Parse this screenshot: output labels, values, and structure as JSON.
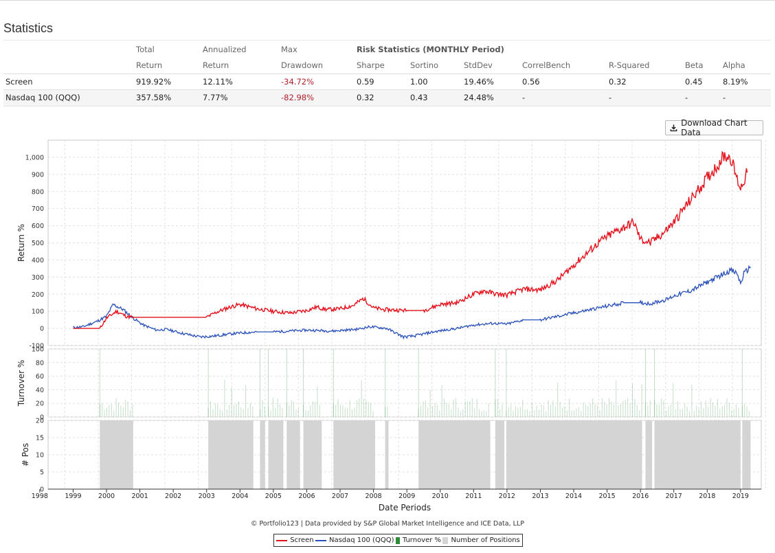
{
  "section_title": "Statistics",
  "table": {
    "group_header": "Risk Statistics (MONTHLY Period)",
    "headers_top": [
      "Total",
      "Annualized",
      "Max"
    ],
    "headers_bottom": [
      "Return",
      "Return",
      "Drawdown",
      "Sharpe",
      "Sortino",
      "StdDev",
      "CorrelBench",
      "R-Squared",
      "Beta",
      "Alpha"
    ],
    "rows": [
      {
        "name": "Screen",
        "cells": [
          "919.92%",
          "12.11%",
          "-34.72%",
          "0.59",
          "1.00",
          "19.46%",
          "0.56",
          "0.32",
          "0.45",
          "8.19%"
        ]
      },
      {
        "name": "Nasdaq 100 (QQQ)",
        "cells": [
          "357.58%",
          "7.77%",
          "-82.98%",
          "0.32",
          "0.43",
          "24.48%",
          "-",
          "-",
          "-",
          "-"
        ]
      }
    ]
  },
  "download_button": "Download Chart Data",
  "download_icon": "download-icon",
  "credits": "© Portfolio123 | Data provided by S&P Global Market Intelligence and ICE Data, LLP",
  "colors": {
    "screen": "#e3111c",
    "benchmark": "#2850b8",
    "turnover": "#2e8b3a",
    "positions": "#d4d4d4"
  },
  "chart_data": {
    "type": "line",
    "xlabel": "Date Periods",
    "x_ticks": [
      "1998",
      "1999",
      "2000",
      "2001",
      "2002",
      "2003",
      "2004",
      "2005",
      "2006",
      "2007",
      "2008",
      "2009",
      "2010",
      "2011",
      "2012",
      "2013",
      "2014",
      "2015",
      "2016",
      "2017",
      "2018",
      "2019"
    ],
    "legend": [
      "Screen",
      "Nasdaq 100 (QQQ)",
      "Turnover %",
      "Number of Positions"
    ],
    "panels": [
      {
        "name": "return",
        "ylabel": "Return %",
        "ylim": [
          -100,
          1100
        ],
        "y_ticks": [
          "-100",
          "0",
          "100",
          "200",
          "300",
          "400",
          "500",
          "600",
          "700",
          "800",
          "900",
          "1,000"
        ],
        "series": [
          {
            "name": "Screen",
            "x": [
              1999.0,
              1999.8,
              2000.0,
              2000.3,
              2000.6,
              2000.8,
              2002.5,
              2003.0,
              2003.3,
              2003.7,
              2004.0,
              2004.5,
              2005.0,
              2005.5,
              2006.0,
              2006.3,
              2006.6,
              2007.0,
              2007.4,
              2007.7,
              2008.0,
              2008.3,
              2009.0,
              2009.5,
              2010.0,
              2010.5,
              2011.0,
              2011.3,
              2011.7,
              2012.0,
              2012.5,
              2013.0,
              2013.5,
              2014.0,
              2014.4,
              2014.8,
              2015.2,
              2015.5,
              2015.8,
              2016.0,
              2016.3,
              2016.7,
              2017.0,
              2017.3,
              2017.7,
              2018.0,
              2018.3,
              2018.5,
              2018.7,
              2018.9,
              2019.0,
              2019.2
            ],
            "values": [
              0,
              0,
              60,
              100,
              70,
              65,
              65,
              65,
              95,
              125,
              140,
              115,
              100,
              90,
              105,
              125,
              110,
              115,
              135,
              175,
              120,
              110,
              105,
              105,
              140,
              150,
              200,
              220,
              200,
              195,
              230,
              225,
              280,
              370,
              440,
              510,
              560,
              590,
              620,
              520,
              500,
              560,
              620,
              700,
              800,
              880,
              950,
              1010,
              1000,
              870,
              820,
              910
            ]
          },
          {
            "name": "Nasdaq 100 (QQQ)",
            "x": [
              1999.0,
              1999.3,
              1999.7,
              2000.0,
              2000.2,
              2000.5,
              2000.8,
              2001.1,
              2001.5,
              2001.8,
              2002.3,
              2002.8,
              2003.2,
              2003.8,
              2004.5,
              2005.0,
              2006.0,
              2006.8,
              2007.5,
              2007.9,
              2008.4,
              2008.9,
              2009.2,
              2009.8,
              2010.5,
              2011.0,
              2011.6,
              2012.0,
              2012.5,
              2013.0,
              2013.5,
              2014.0,
              2014.5,
              2015.0,
              2015.5,
              2016.0,
              2016.3,
              2016.8,
              2017.0,
              2017.5,
              2018.0,
              2018.3,
              2018.7,
              2018.9,
              2019.0,
              2019.1,
              2019.2,
              2019.3
            ],
            "values": [
              5,
              10,
              40,
              70,
              140,
              110,
              60,
              20,
              -10,
              -5,
              -30,
              -50,
              -45,
              -30,
              -20,
              -20,
              -10,
              -15,
              -5,
              10,
              0,
              -50,
              -45,
              -20,
              0,
              20,
              30,
              25,
              50,
              50,
              70,
              90,
              110,
              130,
              150,
              150,
              145,
              170,
              190,
              220,
              270,
              300,
              340,
              320,
              260,
              320,
              340,
              360
            ]
          }
        ]
      },
      {
        "name": "turnover",
        "ylabel": "Turnover %",
        "ylim": [
          0,
          100
        ],
        "y_ticks": [
          "0",
          "20",
          "40",
          "60",
          "80",
          "100"
        ]
      },
      {
        "name": "positions",
        "ylabel": "# Pos",
        "ylim": [
          0,
          20
        ],
        "y_ticks": [
          "0",
          "5",
          "10",
          "15",
          "20"
        ],
        "periods": [
          [
            1999.8,
            2000.8
          ],
          [
            2003.05,
            2004.4
          ],
          [
            2004.6,
            2004.75
          ],
          [
            2004.85,
            2005.3
          ],
          [
            2005.4,
            2005.8
          ],
          [
            2005.9,
            2006.45
          ],
          [
            2006.8,
            2008.05
          ],
          [
            2008.35,
            2008.45
          ],
          [
            2009.35,
            2011.5
          ],
          [
            2011.65,
            2011.92
          ],
          [
            2011.98,
            2016.05
          ],
          [
            2016.15,
            2016.35
          ],
          [
            2016.42,
            2019.0
          ],
          [
            2019.05,
            2019.3
          ]
        ]
      }
    ]
  }
}
